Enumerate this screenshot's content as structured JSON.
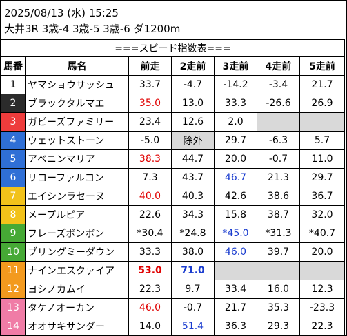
{
  "header": {
    "date_line": "2025/08/13 (水) 15:25",
    "race_line": "大井3R 3歳-4 3歳-5 3歳-6 ダ1200m"
  },
  "table": {
    "title": "===スピード指数表===",
    "columns": [
      "馬番",
      "馬名",
      "前走",
      "2走前",
      "3走前",
      "4走前",
      "5走前"
    ],
    "rows": [
      {
        "num": "1",
        "name": "ヤマショウサッシュ",
        "bg": "#ffffff",
        "fg": "#000000",
        "vals": [
          {
            "t": "33.7"
          },
          {
            "t": "-4.7"
          },
          {
            "t": "-14.2"
          },
          {
            "t": "-3.4"
          },
          {
            "t": "21.7"
          }
        ]
      },
      {
        "num": "2",
        "name": "ブラックタルマエ",
        "bg": "#2b2b2b",
        "fg": "#ffffff",
        "vals": [
          {
            "t": "35.0",
            "c": "red"
          },
          {
            "t": "13.0"
          },
          {
            "t": "33.3"
          },
          {
            "t": "-26.6"
          },
          {
            "t": "26.9"
          }
        ]
      },
      {
        "num": "3",
        "name": "ガビーズファミリー",
        "bg": "#ee3c3c",
        "fg": "#ffffff",
        "vals": [
          {
            "t": "23.4"
          },
          {
            "t": "12.6"
          },
          {
            "t": "2.0"
          },
          {
            "t": "",
            "g": true
          },
          {
            "t": "",
            "g": true
          }
        ]
      },
      {
        "num": "4",
        "name": "ウェットストーン",
        "bg": "#2f6fd6",
        "fg": "#ffffff",
        "vals": [
          {
            "t": "-5.0"
          },
          {
            "t": "除外",
            "g": true
          },
          {
            "t": "29.7"
          },
          {
            "t": "-6.3"
          },
          {
            "t": "5.7"
          }
        ]
      },
      {
        "num": "5",
        "name": "アベニンマリア",
        "bg": "#2f6fd6",
        "fg": "#ffffff",
        "vals": [
          {
            "t": "38.3",
            "c": "red"
          },
          {
            "t": "44.7"
          },
          {
            "t": "20.0"
          },
          {
            "t": "-0.7"
          },
          {
            "t": "11.0"
          }
        ]
      },
      {
        "num": "6",
        "name": "リコーファルコン",
        "bg": "#2f6fd6",
        "fg": "#ffffff",
        "vals": [
          {
            "t": "7.3"
          },
          {
            "t": "43.7"
          },
          {
            "t": "46.7",
            "c": "blue"
          },
          {
            "t": "21.3"
          },
          {
            "t": "29.7"
          }
        ]
      },
      {
        "num": "7",
        "name": "エイシンラセーヌ",
        "bg": "#f2c21a",
        "fg": "#ffffff",
        "vals": [
          {
            "t": "40.0",
            "c": "red"
          },
          {
            "t": "40.3"
          },
          {
            "t": "42.6"
          },
          {
            "t": "38.6"
          },
          {
            "t": "36.7"
          }
        ]
      },
      {
        "num": "8",
        "name": "メープルピア",
        "bg": "#f2c21a",
        "fg": "#ffffff",
        "vals": [
          {
            "t": "22.6"
          },
          {
            "t": "34.3"
          },
          {
            "t": "15.8"
          },
          {
            "t": "38.7"
          },
          {
            "t": "32.0"
          }
        ]
      },
      {
        "num": "9",
        "name": "フレーズボンボン",
        "bg": "#46a935",
        "fg": "#ffffff",
        "vals": [
          {
            "t": "*30.4"
          },
          {
            "t": "*24.8"
          },
          {
            "t": "*45.0",
            "c": "blue"
          },
          {
            "t": "*31.3"
          },
          {
            "t": "*40.7"
          }
        ]
      },
      {
        "num": "10",
        "name": "ブリングミーダウン",
        "bg": "#46a935",
        "fg": "#ffffff",
        "vals": [
          {
            "t": "33.3"
          },
          {
            "t": "38.0"
          },
          {
            "t": "46.0",
            "c": "blue"
          },
          {
            "t": "39.7"
          },
          {
            "t": "20.0"
          }
        ]
      },
      {
        "num": "11",
        "name": "ナインエスクァイア",
        "bg": "#f39a1e",
        "fg": "#ffffff",
        "vals": [
          {
            "t": "53.0",
            "c": "red",
            "b": true
          },
          {
            "t": "71.0",
            "c": "blue",
            "b": true
          },
          {
            "t": "",
            "g": true
          },
          {
            "t": "",
            "g": true
          },
          {
            "t": "",
            "g": true
          }
        ]
      },
      {
        "num": "12",
        "name": "ヨシノカムイ",
        "bg": "#f39a1e",
        "fg": "#ffffff",
        "vals": [
          {
            "t": "22.3"
          },
          {
            "t": "9.7"
          },
          {
            "t": "33.4"
          },
          {
            "t": "16.0"
          },
          {
            "t": "12.3"
          }
        ]
      },
      {
        "num": "13",
        "name": "タケノオーカン",
        "bg": "#f07ca6",
        "fg": "#ffffff",
        "vals": [
          {
            "t": "46.0",
            "c": "red"
          },
          {
            "t": "-0.7"
          },
          {
            "t": "21.7"
          },
          {
            "t": "35.3"
          },
          {
            "t": "-23.3"
          }
        ]
      },
      {
        "num": "14",
        "name": "オオサキサンダー",
        "bg": "#f07ca6",
        "fg": "#ffffff",
        "vals": [
          {
            "t": "14.0"
          },
          {
            "t": "51.4",
            "c": "blue"
          },
          {
            "t": "36.3"
          },
          {
            "t": "29.3"
          },
          {
            "t": "22.3"
          }
        ]
      }
    ]
  }
}
